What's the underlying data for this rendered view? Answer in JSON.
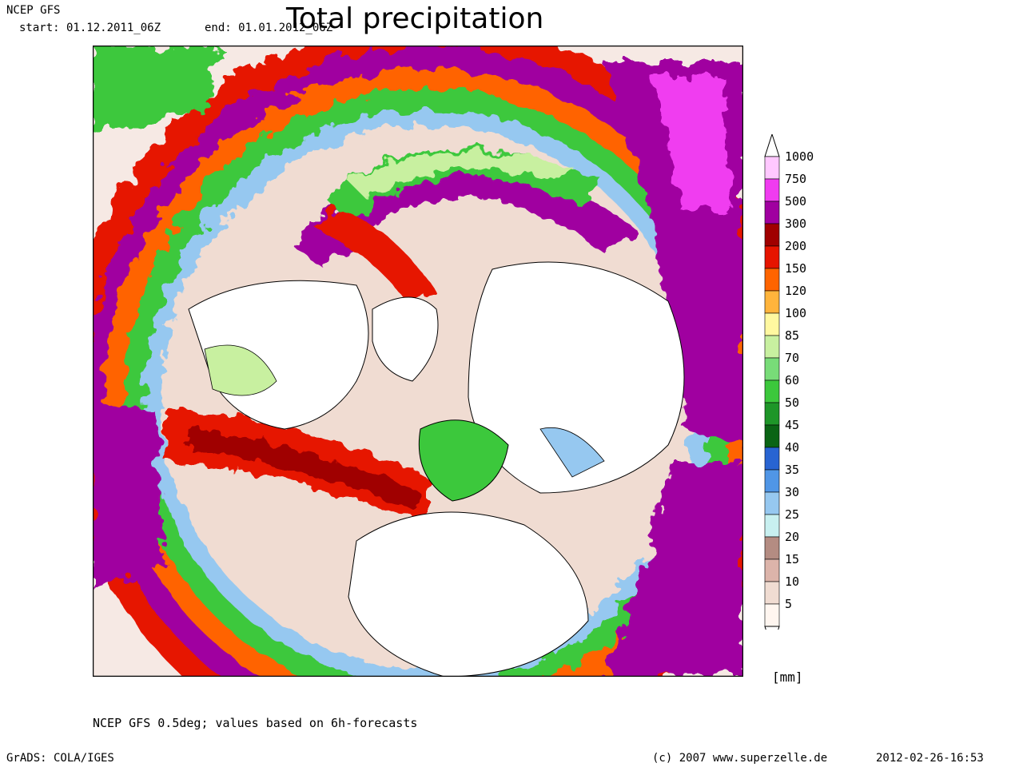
{
  "header": {
    "model": "NCEP GFS",
    "start": "start: 01.12.2011_06Z",
    "end": "end: 01.01.2012_06Z",
    "title": "Total precipitation"
  },
  "legend": {
    "unit": "[mm]",
    "levels": [
      "1000",
      "750",
      "500",
      "300",
      "200",
      "150",
      "120",
      "100",
      "85",
      "70",
      "60",
      "50",
      "45",
      "40",
      "35",
      "30",
      "25",
      "20",
      "15",
      "10",
      "5"
    ],
    "colors": [
      "#ffc8ff",
      "#f03cf0",
      "#a000a0",
      "#a00000",
      "#e61400",
      "#ff6400",
      "#ffb43c",
      "#fff8a0",
      "#c8f0a0",
      "#78dc78",
      "#3cc83c",
      "#1e9628",
      "#0a6414",
      "#2864d2",
      "#5096e6",
      "#96c8f0",
      "#c8f0f0",
      "#b48c82",
      "#dcb4aa",
      "#f0dcd2",
      "#fff6f0"
    ]
  },
  "map": {
    "projection": "polar-stereographic",
    "region": "northern-hemisphere",
    "colors": {
      "background": "#f6e9e4",
      "land": "#ffffff",
      "outline": "#000000"
    }
  },
  "footer": {
    "note": "NCEP GFS 0.5deg; values based on 6h-forecasts",
    "left": "GrADS: COLA/IGES",
    "middle": "(c) 2007 www.superzelle.de",
    "right": "2012-02-26-16:53"
  }
}
